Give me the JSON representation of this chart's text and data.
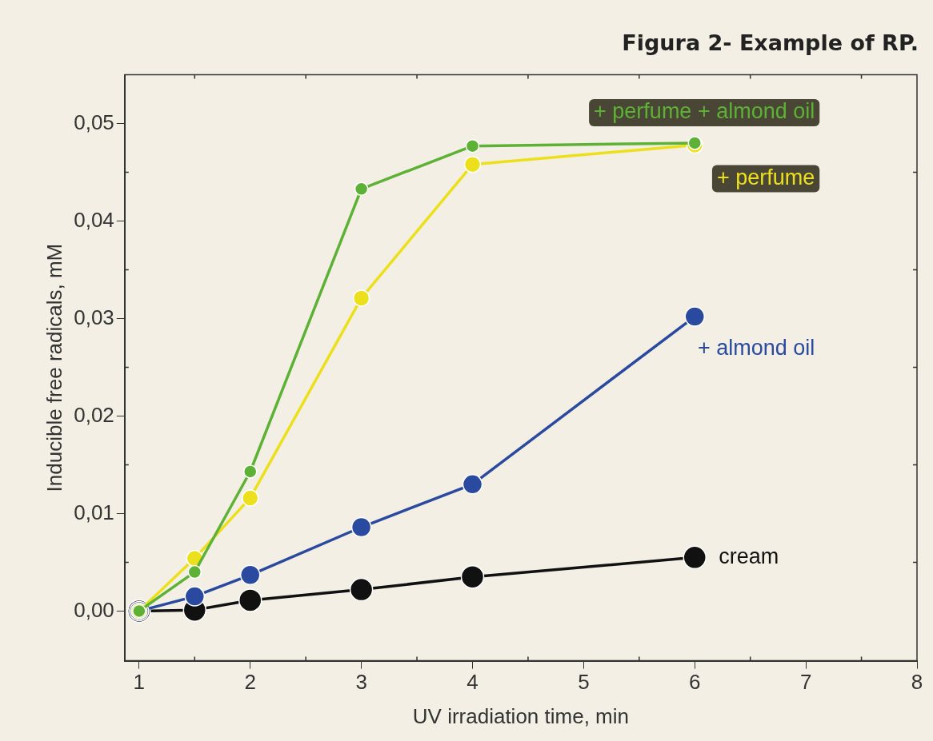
{
  "chart_data": {
    "type": "line",
    "title": "Figura 2- Example of RP.",
    "xlabel": "UV irradiation time, min",
    "ylabel": "Inducible free radicals, mM",
    "xlim": [
      0.87,
      8
    ],
    "ylim": [
      -0.0051,
      0.055
    ],
    "xticks": [
      1,
      2,
      3,
      4,
      5,
      6,
      7,
      8
    ],
    "yticks": [
      {
        "value": 0,
        "label": "0,00"
      },
      {
        "value": 0.01,
        "label": "0,01"
      },
      {
        "value": 0.02,
        "label": "0,02"
      },
      {
        "value": 0.03,
        "label": "0,03"
      },
      {
        "value": 0.04,
        "label": "0,04"
      },
      {
        "value": 0.05,
        "label": "0,05"
      }
    ],
    "grid": false,
    "legend": false,
    "marker": "circle",
    "line_style": "solid",
    "x": [
      1,
      1.5,
      2,
      3,
      4,
      6
    ],
    "series": [
      {
        "name": "+ perfume + almond oil",
        "color": "#5db135",
        "values": [
          0,
          0.004,
          0.0143,
          0.0433,
          0.0477,
          0.048
        ]
      },
      {
        "name": "+ perfume",
        "color": "#ece01c",
        "values": [
          0,
          0.0054,
          0.0116,
          0.0321,
          0.0458,
          0.0478
        ]
      },
      {
        "name": "+ almond oil",
        "color": "#2a4aa0",
        "values": [
          0,
          0.0015,
          0.0037,
          0.0086,
          0.013,
          0.0302
        ]
      },
      {
        "name": "cream",
        "color": "#111111",
        "values": [
          0,
          0.0001,
          0.0011,
          0.0022,
          0.0035,
          0.0055
        ]
      }
    ]
  }
}
